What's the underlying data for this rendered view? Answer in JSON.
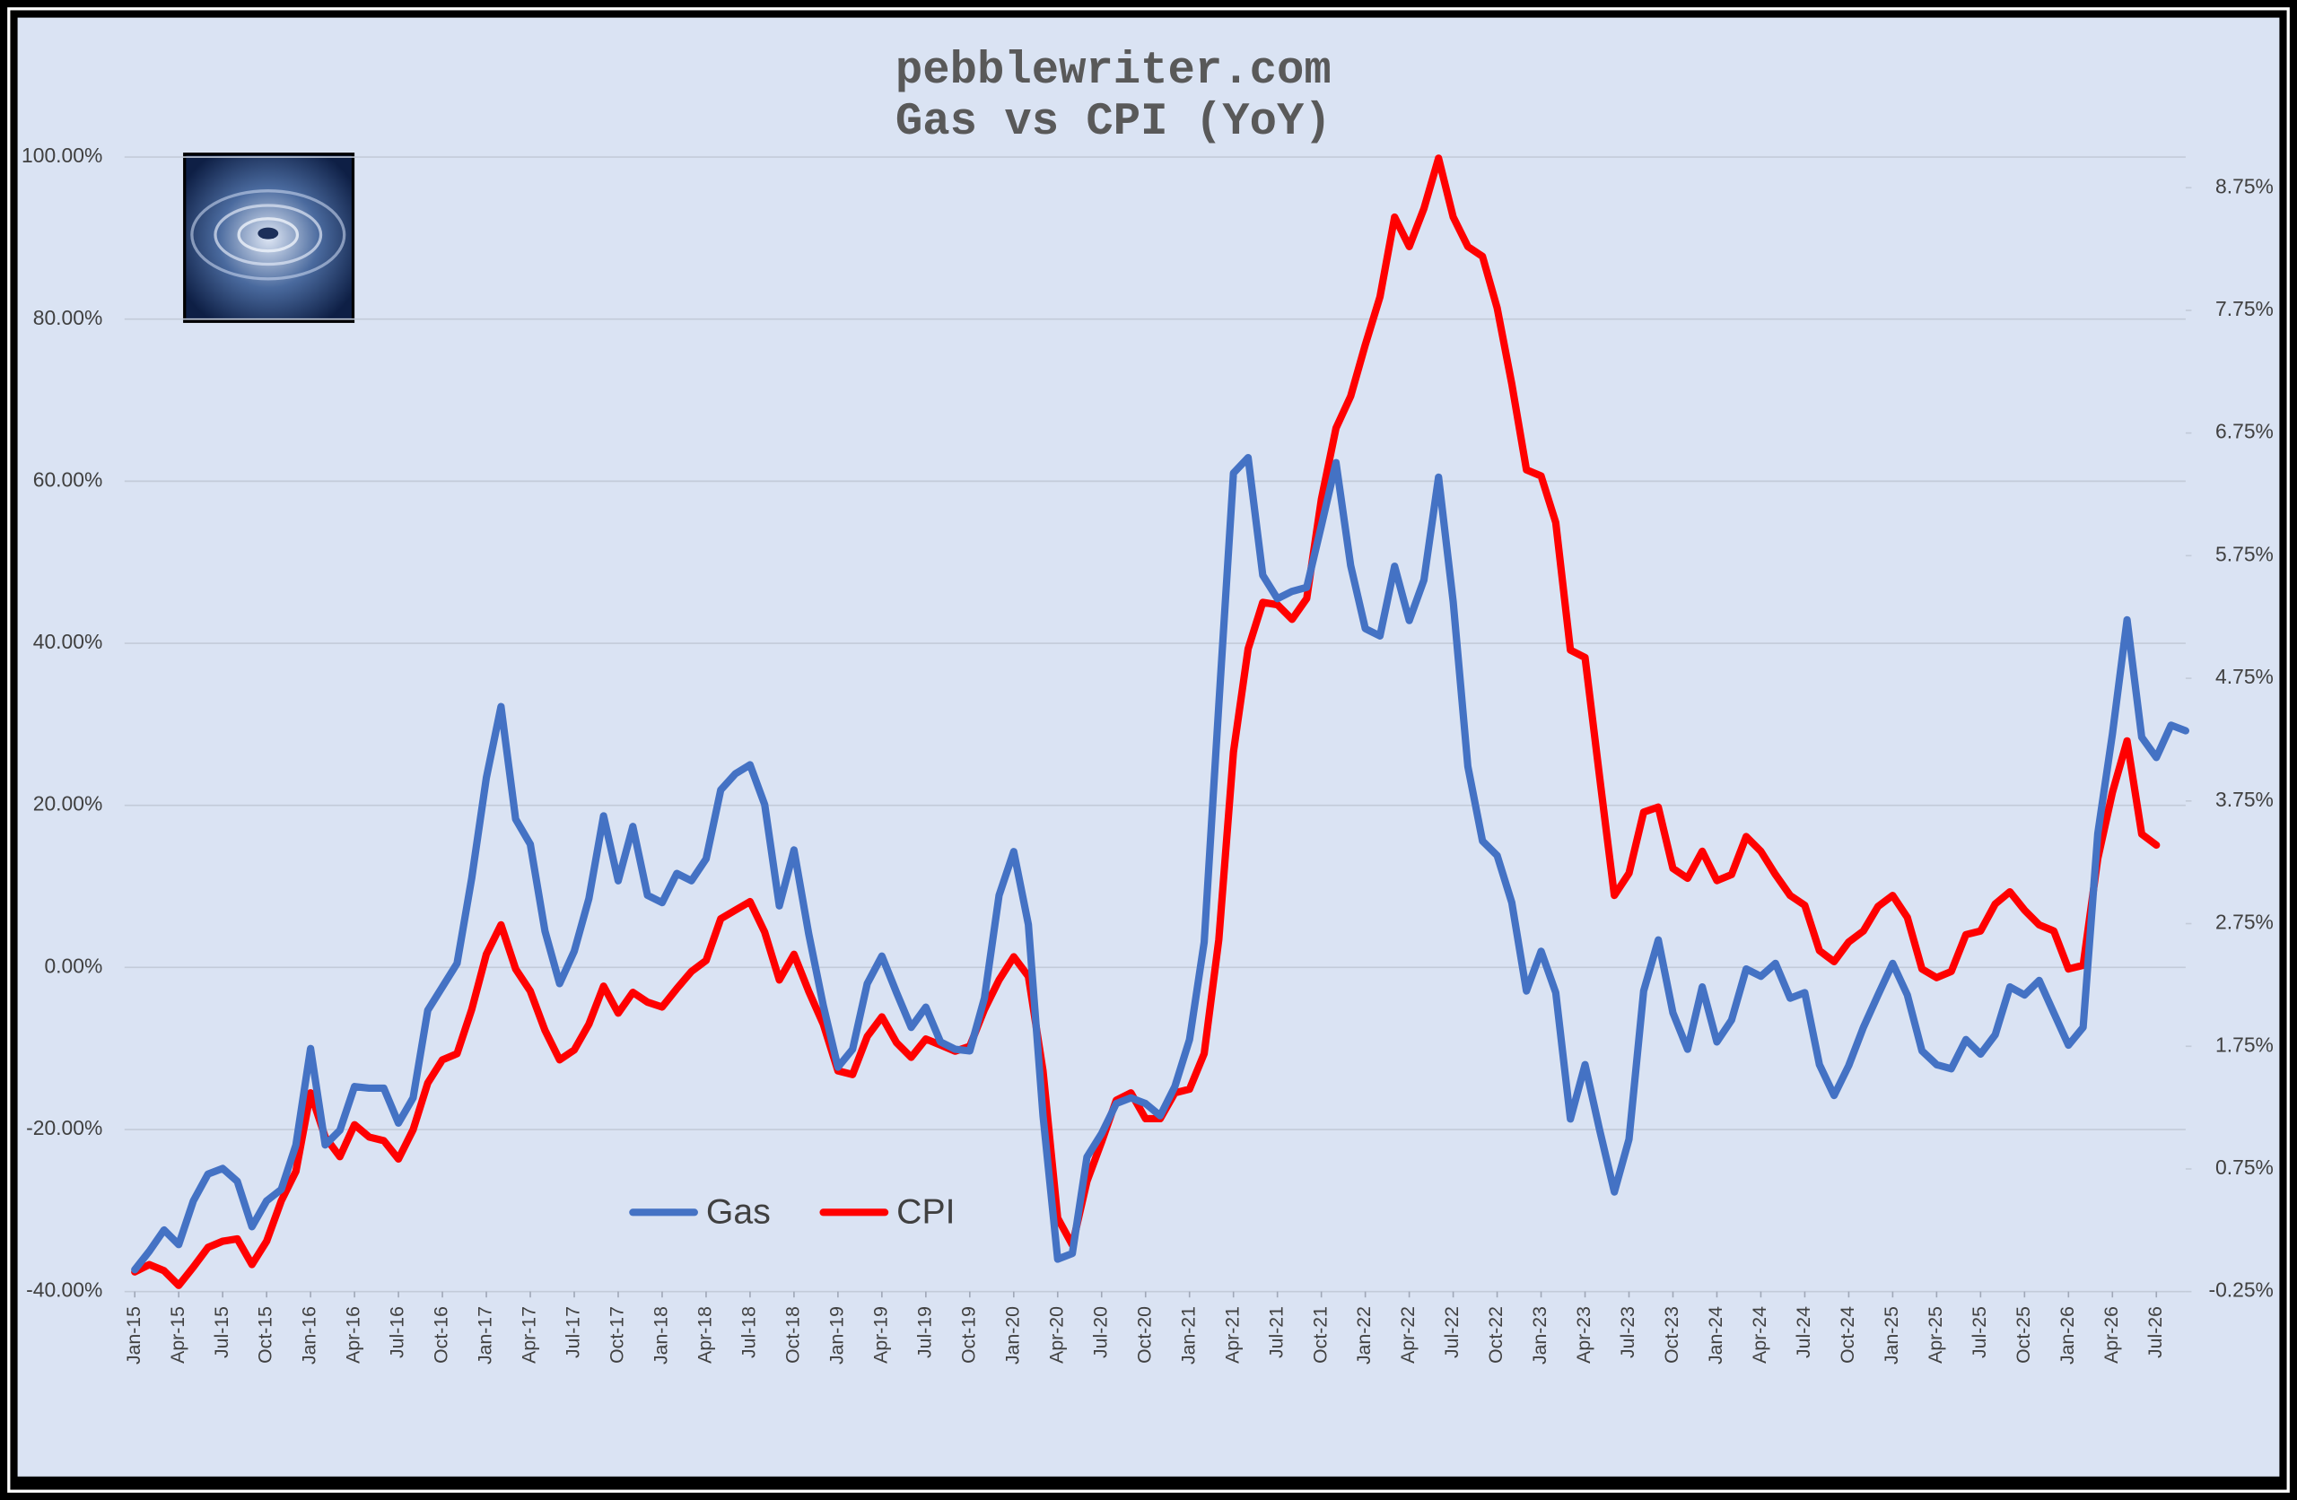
{
  "chart_data": {
    "type": "line",
    "title": "pebblewriter.com",
    "subtitle": "Gas vs CPI (YoY)",
    "categories": [
      "Jan-15",
      null,
      null,
      "Apr-15",
      null,
      null,
      "Jul-15",
      null,
      null,
      "Oct-15",
      null,
      null,
      "Jan-16",
      null,
      null,
      "Apr-16",
      null,
      null,
      "Jul-16",
      null,
      null,
      "Oct-16",
      null,
      null,
      "Jan-17",
      null,
      null,
      "Apr-17",
      null,
      null,
      "Jul-17",
      null,
      null,
      "Oct-17",
      null,
      null,
      "Jan-18",
      null,
      null,
      "Apr-18",
      null,
      null,
      "Jul-18",
      null,
      null,
      "Oct-18",
      null,
      null,
      "Jan-19",
      null,
      null,
      "Apr-19",
      null,
      null,
      "Jul-19",
      null,
      null,
      "Oct-19",
      null,
      null,
      "Jan-20",
      null,
      null,
      "Apr-20",
      null,
      null,
      "Jul-20",
      null,
      null,
      "Oct-20",
      null,
      null,
      "Jan-21",
      null,
      null,
      "Apr-21",
      null,
      null,
      "Jul-21",
      null,
      null,
      "Oct-21",
      null,
      null,
      "Jan-22",
      null,
      null,
      "Apr-22",
      null,
      null,
      "Jul-22",
      null,
      null,
      "Oct-22",
      null,
      null,
      "Jan-23",
      null,
      null,
      "Apr-23",
      null,
      null,
      "Jul-23",
      null,
      null,
      "Oct-23",
      null,
      null,
      "Jan-24",
      null,
      null,
      "Apr-24",
      null,
      null,
      "Jul-24",
      null,
      null,
      "Oct-24",
      null,
      null,
      "Jan-25",
      null,
      null,
      "Apr-25",
      null,
      null,
      "Jul-25",
      null,
      null,
      "Oct-25",
      null,
      null,
      "Jan-26",
      null,
      null,
      "Apr-26",
      null,
      null,
      "Jul-26",
      null,
      null
    ],
    "series": [
      {
        "name": "Gas",
        "color": "#4472c4",
        "values": [
          -37.3,
          -35,
          -32.4,
          -34.2,
          -28.8,
          -25.5,
          -24.8,
          -26.4,
          -32,
          -28.8,
          -27.4,
          -21.9,
          -10,
          -21.9,
          -20.1,
          -14.7,
          -14.9,
          -14.9,
          -19.2,
          -16.1,
          -5.3,
          -2.4,
          0.5,
          11,
          23.4,
          32.2,
          18.3,
          15.2,
          4.5,
          -2,
          2,
          8.5,
          18.7,
          10.7,
          17.4,
          8.9,
          8,
          11.6,
          10.7,
          13.4,
          21.9,
          23.9,
          25,
          20.1,
          7.6,
          14.5,
          4.2,
          -4.7,
          -12.3,
          -10.1,
          -2,
          1.4,
          -3.1,
          -7.4,
          -4.9,
          -9.2,
          -10.1,
          -10.3,
          -3.8,
          8.9,
          14.3,
          5.3,
          -18.3,
          -36,
          -35.3,
          -23.4,
          -20.5,
          -16.8,
          -16.1,
          -16.8,
          -18.3,
          -14.7,
          -8.9,
          3.1,
          32.4,
          61,
          62.9,
          48.4,
          45.5,
          46.4,
          46.9,
          54.5,
          62.3,
          49.6,
          41.8,
          40.9,
          49.5,
          42.8,
          47.8,
          60.5,
          45.1,
          24.8,
          15.6,
          13.8,
          8,
          -2.9,
          2,
          -3.1,
          -18.7,
          -12,
          -20.1,
          -27.7,
          -21.2,
          -2.9,
          3.4,
          -5.6,
          -10.1,
          -2.4,
          -9.2,
          -6.5,
          -0.2,
          -1.1,
          0.5,
          -3.8,
          -3.1,
          -12,
          -15.8,
          -12.1,
          -7.4,
          -3.4,
          0.5,
          -3.4,
          -10.3,
          -12,
          -12.5,
          -8.9,
          -10.7,
          -8.3,
          -2.4,
          -3.4,
          -1.6,
          -5.6,
          -9.6,
          -7.4,
          16.5,
          28.8,
          42.9,
          28.4,
          25.9,
          29.9,
          29.2
        ]
      },
      {
        "name": "CPI",
        "color": "#ff0000",
        "axis": "y2",
        "values": [
          -0.09,
          -0.03,
          -0.08,
          -0.2,
          -0.05,
          0.11,
          0.16,
          0.18,
          -0.03,
          0.16,
          0.49,
          0.73,
          1.37,
          1.01,
          0.85,
          1.11,
          1.01,
          0.98,
          0.83,
          1.07,
          1.45,
          1.64,
          1.69,
          2.05,
          2.5,
          2.74,
          2.38,
          2.2,
          1.88,
          1.64,
          1.72,
          1.93,
          2.24,
          2.02,
          2.19,
          2.11,
          2.07,
          2.22,
          2.36,
          2.45,
          2.79,
          2.86,
          2.93,
          2.68,
          2.29,
          2.5,
          2.2,
          1.93,
          1.55,
          1.52,
          1.83,
          1.99,
          1.78,
          1.66,
          1.81,
          1.76,
          1.71,
          1.75,
          2.05,
          2.29,
          2.48,
          2.32,
          1.55,
          0.35,
          0.13,
          0.65,
          0.97,
          1.31,
          1.37,
          1.16,
          1.16,
          1.37,
          1.4,
          1.69,
          2.62,
          4.15,
          4.99,
          5.37,
          5.35,
          5.23,
          5.4,
          6.21,
          6.79,
          7.05,
          7.47,
          7.86,
          8.51,
          8.27,
          8.58,
          8.99,
          8.51,
          8.27,
          8.19,
          7.77,
          7.15,
          6.45,
          6.4,
          6.02,
          4.98,
          4.92,
          3.94,
          2.98,
          3.16,
          3.66,
          3.7,
          3.2,
          3.12,
          3.34,
          3.1,
          3.15,
          3.46,
          3.34,
          3.15,
          2.98,
          2.9,
          2.53,
          2.44,
          2.6,
          2.69,
          2.89,
          2.98,
          2.8,
          2.38,
          2.31,
          2.36,
          2.66,
          2.69,
          2.91,
          3.01,
          2.86,
          2.74,
          2.69,
          2.38,
          2.41,
          3.28,
          3.82,
          4.24,
          3.48,
          3.39,
          null,
          null
        ]
      }
    ],
    "ylim": [
      -40,
      100
    ],
    "yticks": [
      {
        "value": -40,
        "label": "-40.00%"
      },
      {
        "value": -20,
        "label": "-20.00%"
      },
      {
        "value": 0,
        "label": "0.00%"
      },
      {
        "value": 20,
        "label": "20.00%"
      },
      {
        "value": 40,
        "label": "40.00%"
      },
      {
        "value": 60,
        "label": "60.00%"
      },
      {
        "value": 80,
        "label": "80.00%"
      },
      {
        "value": 100,
        "label": "100.00%"
      }
    ],
    "y2lim": [
      -0.25,
      9.0
    ],
    "y2ticks": [
      {
        "value": -0.25,
        "label": "-0.25%"
      },
      {
        "value": 0.75,
        "label": "0.75%"
      },
      {
        "value": 1.75,
        "label": "1.75%"
      },
      {
        "value": 2.75,
        "label": "2.75%"
      },
      {
        "value": 3.75,
        "label": "3.75%"
      },
      {
        "value": 4.75,
        "label": "4.75%"
      },
      {
        "value": 5.75,
        "label": "5.75%"
      },
      {
        "value": 6.75,
        "label": "6.75%"
      },
      {
        "value": 7.75,
        "label": "7.75%"
      },
      {
        "value": 8.75,
        "label": "8.75%"
      }
    ],
    "grid": true
  }
}
